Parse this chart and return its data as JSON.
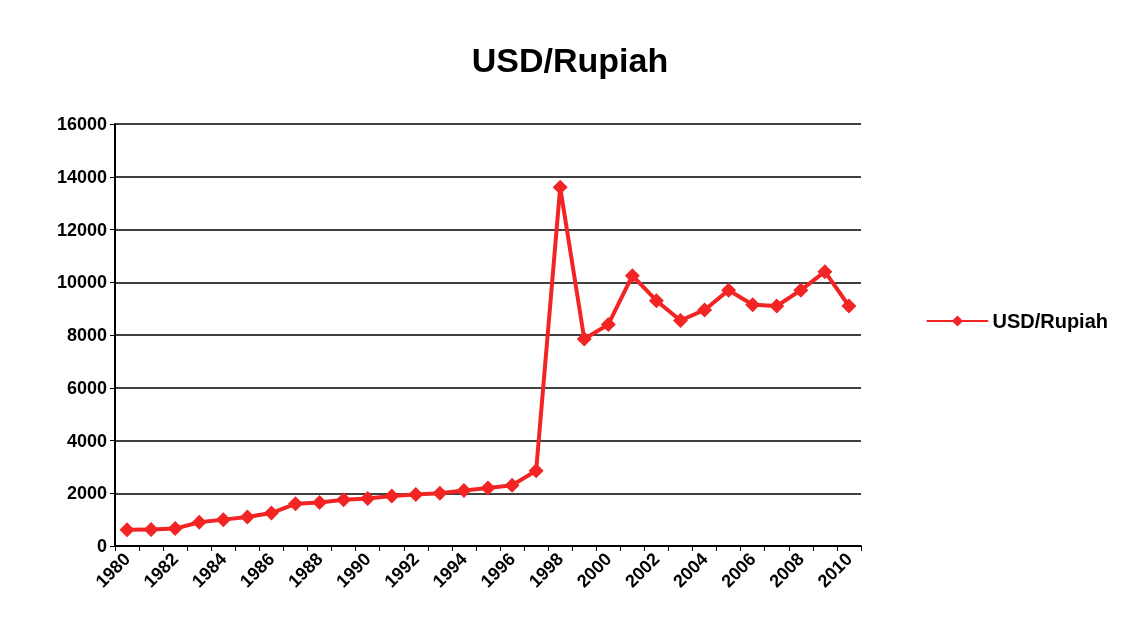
{
  "chart_data": {
    "type": "line",
    "title": "USD/Rupiah",
    "categories": [
      "1980",
      null,
      "1982",
      null,
      "1984",
      null,
      "1986",
      null,
      "1988",
      null,
      "1990",
      null,
      "1992",
      null,
      "1994",
      null,
      "1996",
      null,
      "1998",
      null,
      "2000",
      null,
      "2002",
      null,
      "2004",
      null,
      "2006",
      null,
      "2008",
      null,
      "2010"
    ],
    "series": [
      {
        "name": "USD/Rupiah",
        "color": "#f22424",
        "values": [
          620,
          630,
          660,
          900,
          1000,
          1100,
          1250,
          1600,
          1650,
          1750,
          1800,
          1900,
          1950,
          2000,
          2100,
          2200,
          2300,
          2850,
          13600,
          7850,
          8400,
          10250,
          9300,
          8550,
          8950,
          9700,
          9150,
          9100,
          9700,
          10400,
          9100
        ]
      }
    ],
    "ylim": [
      0,
      16000
    ],
    "yticks": [
      0,
      2000,
      4000,
      6000,
      8000,
      10000,
      12000,
      14000,
      16000
    ],
    "grid": "y",
    "legend": "right",
    "marker": "diamond",
    "line_style": "solid"
  }
}
